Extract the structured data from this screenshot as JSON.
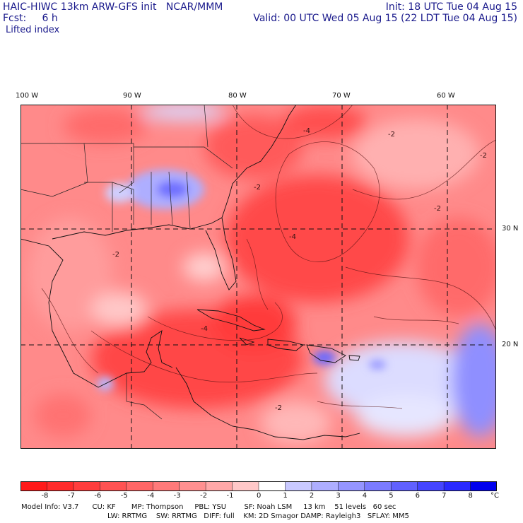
{
  "header": {
    "title": "HAIC-HIWC 13km ARW-GFS init   NCAR/MMM",
    "fcst": "Fcst:     6 h",
    "init": "Init: 18 UTC Tue 04 Aug 15",
    "valid": "Valid: 00 UTC Wed 05 Aug 15 (22 LDT Tue 04 Aug 15)",
    "field": "Lifted index"
  },
  "axes": {
    "lon_labels": [
      "100 W",
      "90 W",
      "80 W",
      "70 W",
      "60 W"
    ],
    "lat_labels": [
      "30 N",
      "20 N"
    ]
  },
  "colorbar": {
    "labels": [
      "-8",
      "-7",
      "-6",
      "-5",
      "-4",
      "-3",
      "-2",
      "-1",
      "0",
      "1",
      "2",
      "3",
      "4",
      "5",
      "6",
      "7",
      "8"
    ],
    "unit": "°C",
    "colors": [
      "#ff1a1a",
      "#ff2b2b",
      "#ff3d3d",
      "#ff5252",
      "#ff6666",
      "#ff7a7a",
      "#ff9090",
      "#ffa8a8",
      "#ffc8c8",
      "#ffffff",
      "#c9c9ff",
      "#aeaeff",
      "#9595ff",
      "#7b7bff",
      "#6161ff",
      "#4545ff",
      "#2a2aff",
      "#0000ee"
    ]
  },
  "map_contour_labels": [
    "-2",
    "-4",
    "-2",
    "-2",
    "-4",
    "-2",
    "-2",
    "-4",
    "-2"
  ],
  "footer": {
    "line1": "Model Info: V3.7      CU: KF       MP: Thompson     PBL: YSU        SF: Noah LSM     13 km    51 levels   60 sec",
    "line2": "LW: RRTMG    SW: RRTMG   DIFF: full    KM: 2D Smagor DAMP: Rayleigh3   SFLAY: MM5"
  }
}
